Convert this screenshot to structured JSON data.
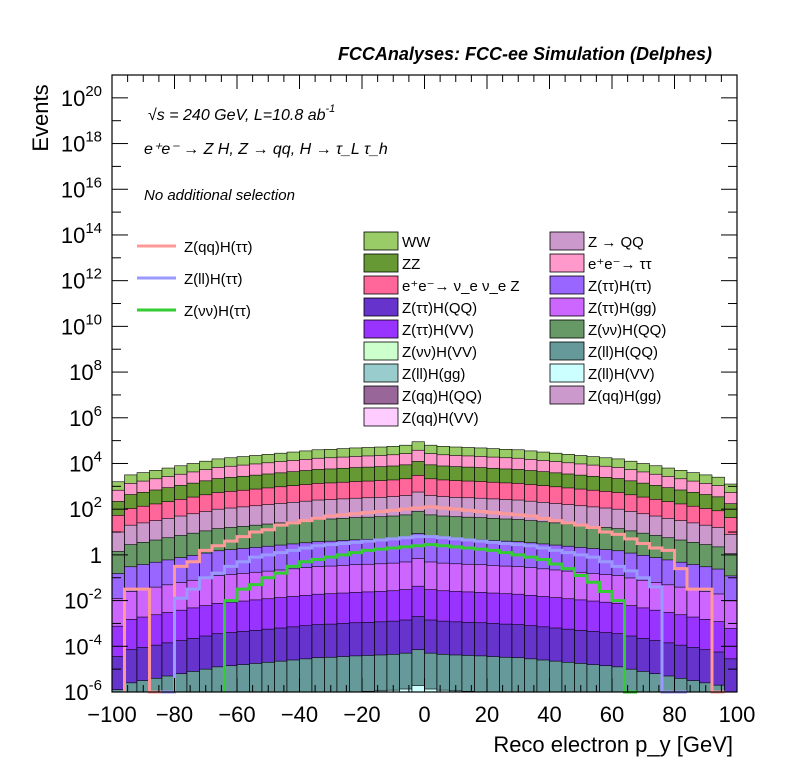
{
  "header": {
    "title": "FCCAnalyses: FCC-ee Simulation (Delphes)",
    "energy_line": "√s = 240 GeV, L=10.8 ab",
    "energy_sup": "-1",
    "process_line": "e⁺e⁻ → Z H, Z → qq, H → τ_L τ_h",
    "selection": "No additional selection"
  },
  "chart_data": {
    "type": "bar",
    "subtype": "stacked histogram with signal overlay lines",
    "xlabel": "Reco electron p_y [GeV]",
    "ylabel": "Events",
    "xlim": [
      -100,
      100
    ],
    "ylim": [
      1e-06,
      1e+21
    ],
    "yscale": "log",
    "x_ticks": [
      "−100",
      "−80",
      "−60",
      "−40",
      "−20",
      "0",
      "20",
      "40",
      "60",
      "80",
      "100"
    ],
    "y_tick_exponents": [
      20,
      18,
      16,
      14,
      12,
      10,
      8,
      6,
      4,
      2,
      0,
      -2,
      -4,
      -6
    ],
    "y_tick_labels": [
      "10^20",
      "10^18",
      "10^16",
      "10^14",
      "10^12",
      "10^10",
      "10^8",
      "10^6",
      "10^4",
      "10^2",
      "1",
      "10^-2",
      "10^-4",
      "10^-6"
    ],
    "bin_edges_range": [
      -100,
      100
    ],
    "bin_width": 4,
    "background_stack_totals_log10": [
      3.2,
      3.5,
      3.6,
      3.7,
      3.8,
      3.9,
      4.0,
      4.1,
      4.2,
      4.25,
      4.3,
      4.35,
      4.4,
      4.45,
      4.5,
      4.55,
      4.6,
      4.62,
      4.65,
      4.68,
      4.7,
      4.72,
      4.75,
      4.8,
      4.95,
      4.8,
      4.75,
      4.72,
      4.7,
      4.68,
      4.65,
      4.62,
      4.6,
      4.55,
      4.5,
      4.45,
      4.4,
      4.35,
      4.3,
      4.25,
      4.2,
      4.1,
      4.0,
      3.9,
      3.8,
      3.7,
      3.6,
      3.5,
      3.4,
      3.1
    ],
    "backgrounds": [
      {
        "name": "WW",
        "color": "#99cc66"
      },
      {
        "name": "ZZ",
        "color": "#669933"
      },
      {
        "name": "e⁺e⁻→ ν_e ν_e Z",
        "color": "#ff6699"
      },
      {
        "name": "Z(ττ)H(QQ)",
        "color": "#6633cc"
      },
      {
        "name": "Z(ττ)H(VV)",
        "color": "#9933ff"
      },
      {
        "name": "Z(νν)H(VV)",
        "color": "#ccffcc"
      },
      {
        "name": "Z(ll)H(gg)",
        "color": "#99cccc"
      },
      {
        "name": "Z(qq)H(QQ)",
        "color": "#996699"
      },
      {
        "name": "Z(qq)H(VV)",
        "color": "#ffccff"
      },
      {
        "name": "Z → QQ",
        "color": "#cc99cc"
      },
      {
        "name": "e⁺e⁻→ ττ",
        "color": "#ff99cc"
      },
      {
        "name": "Z(ττ)H(ττ)",
        "color": "#9966ff"
      },
      {
        "name": "Z(ττ)H(gg)",
        "color": "#cc66ff"
      },
      {
        "name": "Z(νν)H(QQ)",
        "color": "#669966"
      },
      {
        "name": "Z(ll)H(QQ)",
        "color": "#669999"
      },
      {
        "name": "Z(ll)H(VV)",
        "color": "#ccffff"
      },
      {
        "name": "Z(qq)H(gg)",
        "color": "#cc99cc"
      }
    ],
    "signals": [
      {
        "name": "Z(qq)H(ττ)",
        "color": "#ff9999",
        "x": [
          -96,
          -92,
          -88,
          -84,
          -80,
          -76,
          -72,
          -68,
          -64,
          -60,
          -56,
          -52,
          -48,
          -44,
          -40,
          -36,
          -32,
          -28,
          -24,
          -20,
          -16,
          -12,
          -8,
          -4,
          0,
          4,
          8,
          12,
          16,
          20,
          24,
          28,
          32,
          36,
          40,
          44,
          48,
          52,
          56,
          60,
          64,
          68,
          72,
          76,
          80,
          84,
          88,
          92
        ],
        "log10y": [
          -1.5,
          -1.5,
          -6,
          -6,
          -0.5,
          -0.3,
          0.2,
          0.4,
          0.6,
          0.8,
          1.0,
          1.1,
          1.3,
          1.4,
          1.5,
          1.6,
          1.7,
          1.75,
          1.8,
          1.85,
          1.9,
          1.95,
          2.0,
          2.05,
          2.1,
          2.05,
          2.0,
          1.95,
          1.9,
          1.85,
          1.8,
          1.75,
          1.7,
          1.6,
          1.5,
          1.4,
          1.3,
          1.2,
          1.0,
          0.9,
          0.7,
          0.5,
          0.3,
          0.2,
          -0.6,
          -1.5,
          -1.5,
          -6
        ]
      },
      {
        "name": "Z(ll)H(ττ)",
        "color": "#9999ff",
        "x": [
          -84,
          -80,
          -76,
          -72,
          -68,
          -64,
          -60,
          -56,
          -52,
          -48,
          -44,
          -40,
          -36,
          -32,
          -28,
          -24,
          -20,
          -16,
          -12,
          -8,
          -4,
          0,
          4,
          8,
          12,
          16,
          20,
          24,
          28,
          32,
          36,
          40,
          44,
          48,
          52,
          56,
          60,
          64,
          68,
          72,
          76,
          80
        ],
        "log10y": [
          -6,
          -1.9,
          -1.5,
          -1.0,
          -0.8,
          -0.5,
          -0.3,
          -0.1,
          0.0,
          0.1,
          0.2,
          0.3,
          0.4,
          0.45,
          0.5,
          0.55,
          0.6,
          0.65,
          0.7,
          0.75,
          0.8,
          0.8,
          0.75,
          0.7,
          0.65,
          0.6,
          0.55,
          0.5,
          0.45,
          0.4,
          0.3,
          0.2,
          0.1,
          0.0,
          -0.1,
          -0.3,
          -0.5,
          -0.7,
          -1.0,
          -1.4,
          -6,
          -6
        ]
      },
      {
        "name": "Z(νν)H(ττ)",
        "color": "#33cc33",
        "x": [
          -64,
          -60,
          -56,
          -52,
          -48,
          -44,
          -40,
          -36,
          -32,
          -28,
          -24,
          -20,
          -16,
          -12,
          -8,
          -4,
          0,
          4,
          8,
          12,
          16,
          20,
          24,
          28,
          32,
          36,
          40,
          44,
          48,
          52,
          56,
          60,
          64
        ],
        "log10y": [
          -2.0,
          -1.5,
          -1.3,
          -1.0,
          -0.8,
          -0.5,
          -0.3,
          -0.2,
          -0.1,
          0.0,
          0.1,
          0.2,
          0.25,
          0.3,
          0.35,
          0.4,
          0.45,
          0.4,
          0.35,
          0.3,
          0.25,
          0.2,
          0.1,
          0.0,
          -0.1,
          -0.2,
          -0.4,
          -0.6,
          -0.9,
          -1.2,
          -1.6,
          -2.0,
          -6
        ]
      }
    ]
  }
}
